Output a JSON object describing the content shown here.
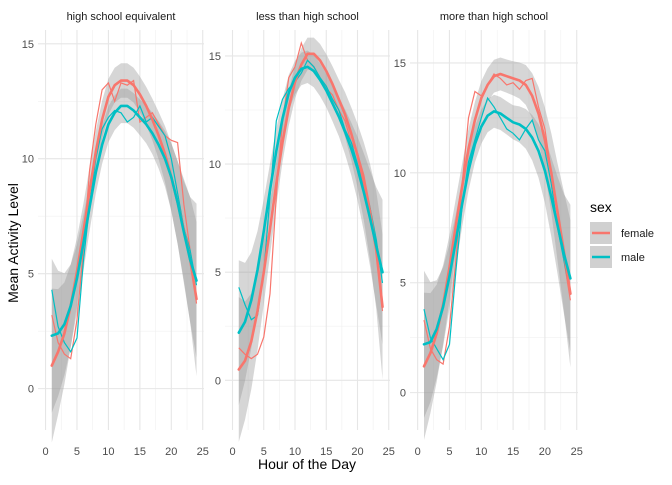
{
  "chart_data": {
    "type": "line",
    "xlabel": "Hour of the Day",
    "ylabel": "Mean Activity Level",
    "legend": {
      "title": "sex",
      "position": "right",
      "entries": [
        {
          "label": "female",
          "color": "#F8766D"
        },
        {
          "label": "male",
          "color": "#00BFC4"
        }
      ]
    },
    "grid": true,
    "x_ticks": [
      "0",
      "5",
      "10",
      "15",
      "20",
      "25"
    ],
    "panels": [
      {
        "title": "high school equivalent",
        "xlim": [
          -1.2,
          25.2
        ],
        "ylim": [
          -1.8,
          15.6
        ],
        "y_ticks": [
          "0",
          "5",
          "10",
          "15"
        ],
        "series": [
          {
            "name": "female",
            "type": "raw",
            "x": [
              1,
              2,
              3,
              4,
              5,
              6,
              7,
              8,
              9,
              10,
              11,
              12,
              13,
              14,
              15,
              16,
              17,
              18,
              19,
              20,
              21,
              22,
              23,
              24
            ],
            "y": [
              3.2,
              2.0,
              1.5,
              1.3,
              3.0,
              6.0,
              9.5,
              11.5,
              13.0,
              13.3,
              12.5,
              13.3,
              13.2,
              13.4,
              11.6,
              11.8,
              12.0,
              11.5,
              11.0,
              10.8,
              10.7,
              8.0,
              6.0,
              3.7
            ]
          },
          {
            "name": "male",
            "type": "raw",
            "x": [
              1,
              2,
              3,
              4,
              5,
              6,
              7,
              8,
              9,
              10,
              11,
              12,
              13,
              14,
              15,
              16,
              17,
              18,
              19,
              20,
              21,
              22,
              23,
              24
            ],
            "y": [
              4.3,
              2.7,
              2.0,
              1.6,
              2.2,
              5.5,
              8.0,
              10.0,
              11.3,
              11.8,
              12.1,
              12.0,
              11.6,
              11.8,
              12.3,
              11.6,
              11.8,
              11.4,
              11.0,
              10.0,
              8.5,
              7.0,
              6.0,
              4.5
            ]
          },
          {
            "name": "female",
            "type": "smooth",
            "x": [
              1,
              2,
              3,
              4,
              5,
              6,
              7,
              8,
              9,
              10,
              11,
              12,
              13,
              14,
              15,
              16,
              17,
              18,
              19,
              20,
              21,
              22,
              23,
              24
            ],
            "y": [
              1.0,
              1.6,
              2.4,
              3.6,
              5.1,
              6.8,
              8.6,
              10.3,
              11.7,
              12.7,
              13.2,
              13.4,
              13.4,
              13.2,
              12.8,
              12.3,
              11.7,
              11.0,
              10.2,
              9.2,
              8.1,
              6.9,
              5.6,
              3.9
            ]
          },
          {
            "name": "male",
            "type": "smooth",
            "x": [
              1,
              2,
              3,
              4,
              5,
              6,
              7,
              8,
              9,
              10,
              11,
              12,
              13,
              14,
              15,
              16,
              17,
              18,
              19,
              20,
              21,
              22,
              23,
              24
            ],
            "y": [
              2.3,
              2.4,
              2.8,
              3.6,
              4.8,
              6.3,
              7.9,
              9.4,
              10.6,
              11.5,
              12.0,
              12.3,
              12.3,
              12.1,
              11.8,
              11.5,
              11.1,
              10.6,
              10.0,
              9.2,
              8.1,
              6.8,
              5.6,
              4.7
            ]
          }
        ]
      },
      {
        "title": "less than high school",
        "xlim": [
          -1.2,
          25.2
        ],
        "ylim": [
          -2.3,
          16.2
        ],
        "y_ticks": [
          "0",
          "5",
          "10",
          "15"
        ],
        "series": [
          {
            "name": "female",
            "type": "raw",
            "x": [
              1,
              2,
              3,
              4,
              5,
              6,
              7,
              8,
              9,
              10,
              11,
              12,
              13,
              14,
              15,
              16,
              17,
              18,
              19,
              20,
              21,
              22,
              23,
              24
            ],
            "y": [
              1.5,
              1.2,
              1.0,
              1.2,
              2.0,
              4.0,
              8.5,
              12.0,
              14.0,
              14.5,
              15.6,
              14.8,
              14.5,
              14.0,
              13.5,
              13.2,
              12.5,
              12.0,
              11.0,
              10.5,
              9.5,
              8.0,
              6.0,
              3.2
            ]
          },
          {
            "name": "male",
            "type": "raw",
            "x": [
              1,
              2,
              3,
              4,
              5,
              6,
              7,
              8,
              9,
              10,
              11,
              12,
              13,
              14,
              15,
              16,
              17,
              18,
              19,
              20,
              21,
              22,
              23,
              24
            ],
            "y": [
              4.3,
              3.5,
              2.8,
              3.0,
              5.0,
              8.5,
              12.0,
              13.0,
              13.5,
              13.8,
              14.2,
              14.8,
              14.5,
              14.0,
              13.6,
              13.0,
              12.5,
              11.6,
              11.0,
              10.0,
              9.0,
              8.0,
              6.5,
              4.5
            ]
          },
          {
            "name": "female",
            "type": "smooth",
            "x": [
              1,
              2,
              3,
              4,
              5,
              6,
              7,
              8,
              9,
              10,
              11,
              12,
              13,
              14,
              15,
              16,
              17,
              18,
              19,
              20,
              21,
              22,
              23,
              24
            ],
            "y": [
              0.5,
              0.9,
              1.8,
              3.2,
              5.0,
              7.0,
              9.1,
              11.0,
              12.6,
              13.8,
              14.6,
              15.1,
              15.1,
              14.8,
              14.3,
              13.7,
              13.0,
              12.3,
              11.4,
              10.4,
              9.2,
              7.8,
              6.0,
              3.4
            ]
          },
          {
            "name": "male",
            "type": "smooth",
            "x": [
              1,
              2,
              3,
              4,
              5,
              6,
              7,
              8,
              9,
              10,
              11,
              12,
              13,
              14,
              15,
              16,
              17,
              18,
              19,
              20,
              21,
              22,
              23,
              24
            ],
            "y": [
              2.2,
              2.7,
              3.7,
              5.1,
              6.9,
              8.8,
              10.6,
              12.1,
              13.3,
              14.0,
              14.4,
              14.5,
              14.3,
              13.9,
              13.4,
              12.8,
              12.2,
              11.5,
              10.7,
              9.8,
              8.7,
              7.5,
              6.2,
              5.0
            ]
          }
        ]
      },
      {
        "title": "more than high school",
        "xlim": [
          -1.2,
          25.2
        ],
        "ylim": [
          -1.7,
          16.5
        ],
        "y_ticks": [
          "0",
          "5",
          "10",
          "15"
        ],
        "series": [
          {
            "name": "female",
            "type": "raw",
            "x": [
              1,
              2,
              3,
              4,
              5,
              6,
              7,
              8,
              9,
              10,
              11,
              12,
              13,
              14,
              15,
              16,
              17,
              18,
              19,
              20,
              21,
              22,
              23,
              24
            ],
            "y": [
              3.3,
              2.0,
              1.5,
              1.3,
              3.0,
              6.0,
              9.5,
              12.5,
              13.7,
              13.5,
              14.0,
              14.5,
              14.3,
              14.0,
              14.1,
              13.8,
              14.2,
              14.3,
              13.0,
              12.0,
              10.0,
              8.0,
              6.0,
              4.2
            ]
          },
          {
            "name": "male",
            "type": "raw",
            "x": [
              1,
              2,
              3,
              4,
              5,
              6,
              7,
              8,
              9,
              10,
              11,
              12,
              13,
              14,
              15,
              16,
              17,
              18,
              19,
              20,
              21,
              22,
              23,
              24
            ],
            "y": [
              3.8,
              2.5,
              2.0,
              1.5,
              2.2,
              5.5,
              8.5,
              10.5,
              11.5,
              12.5,
              13.4,
              13.0,
              12.5,
              12.0,
              11.8,
              11.5,
              12.0,
              12.4,
              11.5,
              11.0,
              9.5,
              7.5,
              6.0,
              4.5
            ]
          },
          {
            "name": "female",
            "type": "smooth",
            "x": [
              1,
              2,
              3,
              4,
              5,
              6,
              7,
              8,
              9,
              10,
              11,
              12,
              13,
              14,
              15,
              16,
              17,
              18,
              19,
              20,
              21,
              22,
              23,
              24
            ],
            "y": [
              1.2,
              1.8,
              2.7,
              4.0,
              5.7,
              7.6,
              9.4,
              11.1,
              12.4,
              13.4,
              14.0,
              14.4,
              14.5,
              14.4,
              14.3,
              14.2,
              14.0,
              13.5,
              12.7,
              11.5,
              10.0,
              8.2,
              6.4,
              4.5
            ]
          },
          {
            "name": "male",
            "type": "smooth",
            "x": [
              1,
              2,
              3,
              4,
              5,
              6,
              7,
              8,
              9,
              10,
              11,
              12,
              13,
              14,
              15,
              16,
              17,
              18,
              19,
              20,
              21,
              22,
              23,
              24
            ],
            "y": [
              2.2,
              2.3,
              2.9,
              3.9,
              5.3,
              6.9,
              8.6,
              10.1,
              11.3,
              12.1,
              12.6,
              12.8,
              12.7,
              12.5,
              12.3,
              12.2,
              12.0,
              11.6,
              11.0,
              10.1,
              8.9,
              7.6,
              6.3,
              5.2
            ]
          }
        ]
      }
    ]
  }
}
